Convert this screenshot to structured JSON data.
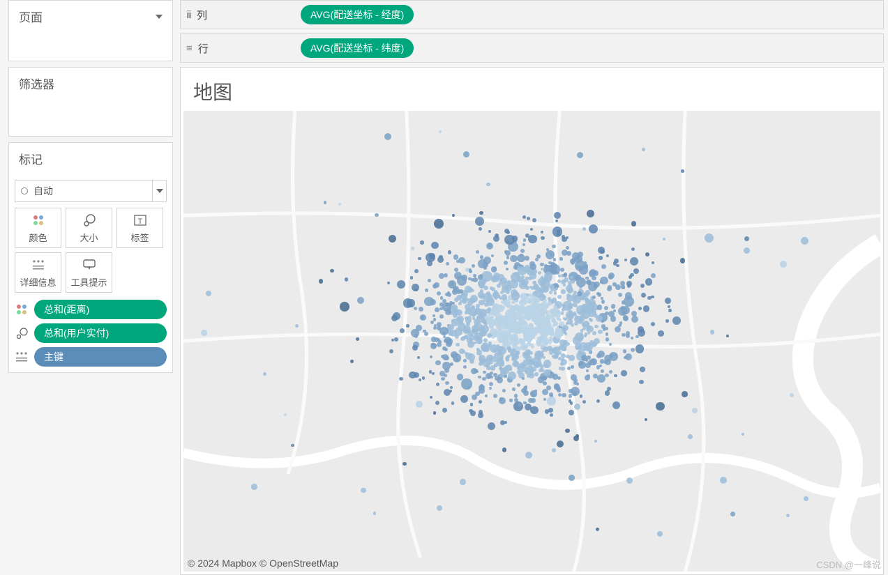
{
  "panels": {
    "pages": {
      "title": "页面"
    },
    "filters": {
      "title": "筛选器"
    },
    "marks": {
      "title": "标记",
      "markType": "自动",
      "cards": [
        {
          "id": "color",
          "label": "颜色",
          "icon": "color-dots-icon"
        },
        {
          "id": "size",
          "label": "大小",
          "icon": "size-icon"
        },
        {
          "id": "label",
          "label": "标签",
          "icon": "text-icon"
        },
        {
          "id": "detail",
          "label": "详细信息",
          "icon": "detail-icon"
        },
        {
          "id": "tooltip",
          "label": "工具提示",
          "icon": "tooltip-icon"
        }
      ],
      "pills": [
        {
          "icon": "color-dots-icon",
          "label": "总和(距离)",
          "bg": "#00a77d"
        },
        {
          "icon": "size-varied-icon",
          "label": "总和(用户实付)",
          "bg": "#00a77d"
        },
        {
          "icon": "detail-icon",
          "label": "主键",
          "bg": "#5c8db8"
        }
      ]
    }
  },
  "shelves": {
    "columns": {
      "label": "列",
      "icon": "columns-icon",
      "pill": {
        "text": "AVG(配送坐标 - 经度)",
        "bg": "#00a77d"
      }
    },
    "rows": {
      "label": "行",
      "icon": "rows-icon",
      "pill": {
        "text": "AVG(配送坐标 - 纬度)",
        "bg": "#00a77d"
      }
    }
  },
  "viz": {
    "title": "地图",
    "attribution": "© 2024 Mapbox © OpenStreetMap",
    "watermark": "CSDN @一峰说",
    "map_bg": "#ebebeb",
    "road_color": "#ffffff",
    "scatter": {
      "n_points": 1400,
      "center_x": 0.49,
      "center_y": 0.46,
      "spread_x": 0.22,
      "spread_y": 0.24,
      "size_min": 2,
      "size_max": 8,
      "colors": [
        "#446a92",
        "#5a84ad",
        "#7aa0c4",
        "#9cbdd9",
        "#b9d2e6"
      ],
      "opacity": 0.85
    }
  }
}
